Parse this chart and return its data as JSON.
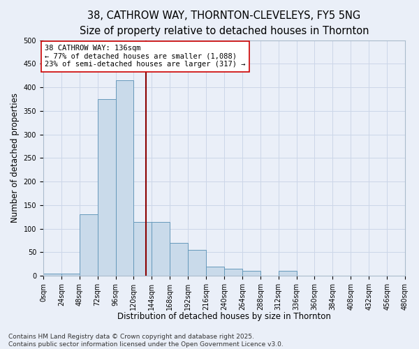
{
  "title_line1": "38, CATHROW WAY, THORNTON-CLEVELEYS, FY5 5NG",
  "title_line2": "Size of property relative to detached houses in Thornton",
  "xlabel": "Distribution of detached houses by size in Thornton",
  "ylabel": "Number of detached properties",
  "bin_labels": [
    "0sqm",
    "24sqm",
    "48sqm",
    "72sqm",
    "96sqm",
    "120sqm",
    "144sqm",
    "168sqm",
    "192sqm",
    "216sqm",
    "240sqm",
    "264sqm",
    "288sqm",
    "312sqm",
    "336sqm",
    "360sqm",
    "384sqm",
    "408sqm",
    "432sqm",
    "456sqm",
    "480sqm"
  ],
  "bar_values": [
    5,
    5,
    130,
    375,
    415,
    115,
    115,
    70,
    55,
    20,
    15,
    10,
    0,
    10,
    0,
    0,
    0,
    0,
    0,
    0
  ],
  "bar_color": "#c9daea",
  "bar_edge_color": "#6699bb",
  "grid_color": "#ccd6e8",
  "background_color": "#eaeff8",
  "vline_x": 136,
  "vline_color": "#8b0000",
  "annotation_text": "38 CATHROW WAY: 136sqm\n← 77% of detached houses are smaller (1,088)\n23% of semi-detached houses are larger (317) →",
  "annotation_box_color": "#ffffff",
  "annotation_box_edge": "#cc0000",
  "ylim": [
    0,
    500
  ],
  "yticks": [
    0,
    50,
    100,
    150,
    200,
    250,
    300,
    350,
    400,
    450,
    500
  ],
  "footer_text": "Contains HM Land Registry data © Crown copyright and database right 2025.\nContains public sector information licensed under the Open Government Licence v3.0.",
  "bin_size": 24,
  "num_bins": 20,
  "title_fontsize": 10.5,
  "subtitle_fontsize": 9.5,
  "axis_label_fontsize": 8.5,
  "tick_fontsize": 7,
  "annotation_fontsize": 7.5,
  "footer_fontsize": 6.5
}
